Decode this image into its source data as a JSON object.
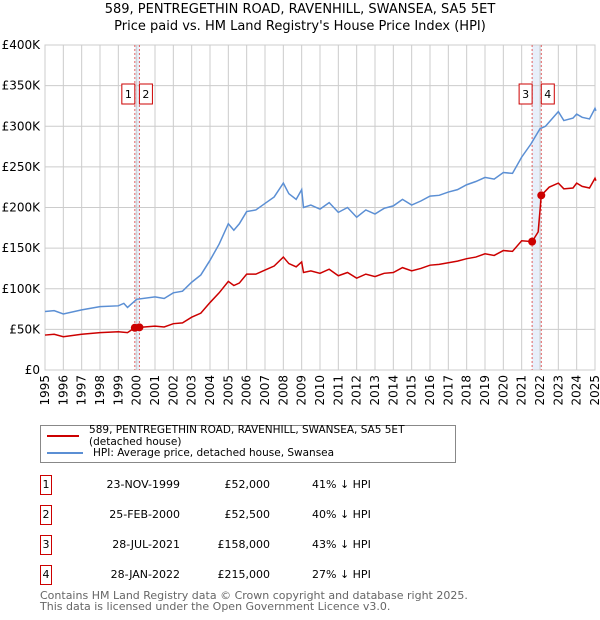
{
  "title": "589, PENTREGETHIN ROAD, RAVENHILL, SWANSEA, SA5 5ET",
  "subtitle": "Price paid vs. HM Land Registry's House Price Index (HPI)",
  "chart_data": {
    "type": "line",
    "title": "589, PENTREGETHIN ROAD, RAVENHILL, SWANSEA, SA5 5ET",
    "subtitle": "Price paid vs. HM Land Registry's House Price Index (HPI)",
    "xlim": [
      1995,
      2025
    ],
    "ylim": [
      0,
      400000
    ],
    "x_ticks": [
      "1995",
      "1996",
      "1997",
      "1998",
      "1999",
      "2000",
      "2001",
      "2002",
      "2003",
      "2004",
      "2005",
      "2006",
      "2007",
      "2008",
      "2009",
      "2010",
      "2011",
      "2012",
      "2013",
      "2014",
      "2015",
      "2016",
      "2017",
      "2018",
      "2019",
      "2020",
      "2021",
      "2022",
      "2023",
      "2024",
      "2025"
    ],
    "y_ticks": [
      {
        "v": 0,
        "label": "£0"
      },
      {
        "v": 50000,
        "label": "£50K"
      },
      {
        "v": 100000,
        "label": "£100K"
      },
      {
        "v": 150000,
        "label": "£150K"
      },
      {
        "v": 200000,
        "label": "£200K"
      },
      {
        "v": 250000,
        "label": "£250K"
      },
      {
        "v": 300000,
        "label": "£300K"
      },
      {
        "v": 350000,
        "label": "£350K"
      },
      {
        "v": 400000,
        "label": "£400K"
      }
    ],
    "grid": true,
    "series": [
      {
        "name": "589, PENTREGETHIN ROAD, RAVENHILL, SWANSEA, SA5 5ET (detached house)",
        "color": "#cc0000",
        "points": [
          [
            1995,
            43
          ],
          [
            1995.5,
            44
          ],
          [
            1996,
            41
          ],
          [
            1997,
            44
          ],
          [
            1998,
            46
          ],
          [
            1999,
            47
          ],
          [
            1999.5,
            46
          ],
          [
            1999.9,
            52
          ],
          [
            2000.15,
            52.5
          ],
          [
            2001,
            54
          ],
          [
            2001.5,
            53
          ],
          [
            2002,
            57
          ],
          [
            2002.5,
            58
          ],
          [
            2003,
            65
          ],
          [
            2003.5,
            70
          ],
          [
            2004,
            83
          ],
          [
            2004.5,
            95
          ],
          [
            2005,
            109
          ],
          [
            2005.3,
            104
          ],
          [
            2005.6,
            107
          ],
          [
            2006,
            118
          ],
          [
            2006.5,
            118
          ],
          [
            2007,
            123
          ],
          [
            2007.5,
            128
          ],
          [
            2008,
            139
          ],
          [
            2008.3,
            131
          ],
          [
            2008.7,
            127
          ],
          [
            2009,
            133
          ],
          [
            2009.1,
            120
          ],
          [
            2009.5,
            122
          ],
          [
            2010,
            119
          ],
          [
            2010.5,
            124
          ],
          [
            2011,
            116
          ],
          [
            2011.5,
            120
          ],
          [
            2012,
            113
          ],
          [
            2012.5,
            118
          ],
          [
            2013,
            115
          ],
          [
            2013.5,
            119
          ],
          [
            2014,
            120
          ],
          [
            2014.5,
            126
          ],
          [
            2015,
            122
          ],
          [
            2015.5,
            125
          ],
          [
            2016,
            129
          ],
          [
            2016.5,
            130
          ],
          [
            2017,
            132
          ],
          [
            2017.5,
            134
          ],
          [
            2018,
            137
          ],
          [
            2018.5,
            139
          ],
          [
            2019,
            143
          ],
          [
            2019.5,
            141
          ],
          [
            2020,
            147
          ],
          [
            2020.5,
            146
          ],
          [
            2021,
            159
          ],
          [
            2021.57,
            158
          ],
          [
            2021.9,
            170
          ],
          [
            2022.07,
            215
          ],
          [
            2022.5,
            225
          ],
          [
            2023,
            230
          ],
          [
            2023.3,
            223
          ],
          [
            2023.8,
            224
          ],
          [
            2024,
            230
          ],
          [
            2024.3,
            226
          ],
          [
            2024.7,
            224
          ],
          [
            2025,
            236
          ],
          [
            2025.05,
            233
          ]
        ]
      },
      {
        "name": "HPI: Average price, detached house, Swansea",
        "color": "#5b8fd4",
        "points": [
          [
            1995,
            72
          ],
          [
            1995.5,
            73
          ],
          [
            1996,
            69
          ],
          [
            1997,
            74
          ],
          [
            1998,
            78
          ],
          [
            1999,
            79
          ],
          [
            1999.3,
            82
          ],
          [
            1999.5,
            77
          ],
          [
            2000,
            87
          ],
          [
            2001,
            90
          ],
          [
            2001.5,
            88
          ],
          [
            2002,
            95
          ],
          [
            2002.5,
            97
          ],
          [
            2003,
            108
          ],
          [
            2003.5,
            117
          ],
          [
            2004,
            135
          ],
          [
            2004.5,
            155
          ],
          [
            2005,
            180
          ],
          [
            2005.3,
            172
          ],
          [
            2005.6,
            180
          ],
          [
            2006,
            195
          ],
          [
            2006.5,
            197
          ],
          [
            2007,
            205
          ],
          [
            2007.5,
            213
          ],
          [
            2008,
            230
          ],
          [
            2008.3,
            217
          ],
          [
            2008.7,
            210
          ],
          [
            2009,
            222
          ],
          [
            2009.1,
            200
          ],
          [
            2009.5,
            203
          ],
          [
            2010,
            198
          ],
          [
            2010.5,
            206
          ],
          [
            2011,
            194
          ],
          [
            2011.5,
            200
          ],
          [
            2012,
            188
          ],
          [
            2012.5,
            197
          ],
          [
            2013,
            192
          ],
          [
            2013.5,
            199
          ],
          [
            2014,
            202
          ],
          [
            2014.5,
            210
          ],
          [
            2015,
            203
          ],
          [
            2015.5,
            208
          ],
          [
            2016,
            214
          ],
          [
            2016.5,
            215
          ],
          [
            2017,
            219
          ],
          [
            2017.5,
            222
          ],
          [
            2018,
            228
          ],
          [
            2018.5,
            232
          ],
          [
            2019,
            237
          ],
          [
            2019.5,
            235
          ],
          [
            2020,
            243
          ],
          [
            2020.5,
            242
          ],
          [
            2021,
            262
          ],
          [
            2021.5,
            278
          ],
          [
            2022,
            297
          ],
          [
            2022.3,
            300
          ],
          [
            2023,
            318
          ],
          [
            2023.3,
            307
          ],
          [
            2023.8,
            310
          ],
          [
            2024,
            315
          ],
          [
            2024.3,
            311
          ],
          [
            2024.7,
            309
          ],
          [
            2025,
            322
          ],
          [
            2025.05,
            319
          ]
        ]
      }
    ],
    "sales": [
      {
        "id": "1",
        "x": 1999.9,
        "value": 52000
      },
      {
        "id": "2",
        "x": 2000.15,
        "value": 52500
      },
      {
        "id": "3",
        "x": 2021.57,
        "value": 158000
      },
      {
        "id": "4",
        "x": 2022.07,
        "value": 215000
      }
    ]
  },
  "legend": {
    "red": "589, PENTREGETHIN ROAD, RAVENHILL, SWANSEA, SA5 5ET (detached house)",
    "blue": "HPI: Average price, detached house, Swansea"
  },
  "transactions": [
    {
      "num": "1",
      "date": "23-NOV-1999",
      "price": "£52,000",
      "hpi": "41% ↓ HPI"
    },
    {
      "num": "2",
      "date": "25-FEB-2000",
      "price": "£52,500",
      "hpi": "40% ↓ HPI"
    },
    {
      "num": "3",
      "date": "28-JUL-2021",
      "price": "£158,000",
      "hpi": "43% ↓ HPI"
    },
    {
      "num": "4",
      "date": "28-JAN-2022",
      "price": "£215,000",
      "hpi": "27% ↓ HPI"
    }
  ],
  "footer": {
    "line1": "Contains HM Land Registry data © Crown copyright and database right 2025.",
    "line2": "This data is licensed under the Open Government Licence v3.0."
  }
}
